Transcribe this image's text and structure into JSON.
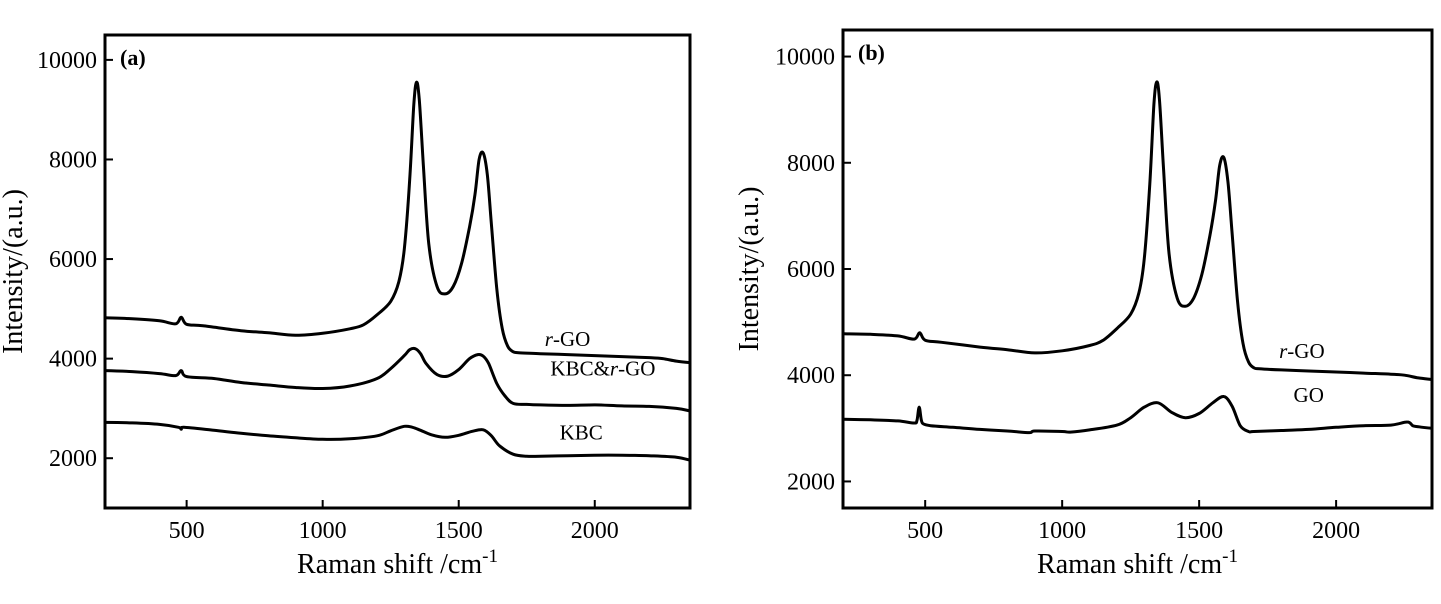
{
  "chart_data": [
    {
      "type": "line",
      "panel_label": "(a)",
      "xlabel_main": "Raman shift /cm",
      "xlabel_sup": "-1",
      "ylabel": "Intensity/(a.u.)",
      "xlim": [
        200,
        2350
      ],
      "ylim": [
        1000,
        10500
      ],
      "xticks": [
        500,
        1000,
        1500,
        2000
      ],
      "yticks": [
        2000,
        4000,
        6000,
        8000,
        10000
      ],
      "grid": false,
      "series": [
        {
          "name": "r-GO",
          "label_parts": [
            {
              "text": "r",
              "italic": true
            },
            {
              "text": "-GO",
              "italic": false
            }
          ],
          "label_at": [
            1900,
            4250
          ],
          "x": [
            200,
            300,
            400,
            460,
            480,
            500,
            560,
            700,
            800,
            900,
            1000,
            1100,
            1150,
            1200,
            1250,
            1280,
            1300,
            1320,
            1335,
            1345,
            1355,
            1370,
            1390,
            1420,
            1450,
            1480,
            1510,
            1540,
            1560,
            1575,
            1590,
            1605,
            1620,
            1640,
            1660,
            1680,
            1700,
            1720,
            1800,
            1900,
            2000,
            2100,
            2200,
            2250,
            2300,
            2350
          ],
          "values": [
            4820,
            4800,
            4760,
            4700,
            4830,
            4690,
            4660,
            4560,
            4520,
            4470,
            4510,
            4600,
            4680,
            4880,
            5150,
            5550,
            6200,
            7600,
            9100,
            9550,
            9200,
            7900,
            6300,
            5450,
            5300,
            5450,
            5900,
            6650,
            7300,
            8000,
            8130,
            7700,
            6700,
            5400,
            4600,
            4250,
            4140,
            4120,
            4100,
            4080,
            4060,
            4040,
            4020,
            4000,
            3950,
            3920
          ]
        },
        {
          "name": "KBC&r-GO",
          "label_parts": [
            {
              "text": "KBC&",
              "italic": false
            },
            {
              "text": "r",
              "italic": true
            },
            {
              "text": "-GO",
              "italic": false
            }
          ],
          "label_at": [
            2030,
            3660
          ],
          "x": [
            200,
            300,
            400,
            460,
            480,
            500,
            600,
            700,
            800,
            900,
            1000,
            1100,
            1200,
            1250,
            1300,
            1320,
            1340,
            1360,
            1380,
            1420,
            1460,
            1500,
            1540,
            1570,
            1590,
            1610,
            1640,
            1670,
            1700,
            1750,
            1800,
            1900,
            2000,
            2100,
            2200,
            2300,
            2350
          ],
          "values": [
            3760,
            3740,
            3700,
            3660,
            3760,
            3640,
            3600,
            3520,
            3470,
            3420,
            3400,
            3450,
            3600,
            3800,
            4060,
            4180,
            4200,
            4100,
            3900,
            3680,
            3650,
            3780,
            4000,
            4080,
            4050,
            3900,
            3500,
            3250,
            3100,
            3080,
            3070,
            3060,
            3070,
            3050,
            3040,
            3000,
            2950
          ]
        },
        {
          "name": "KBC",
          "label_parts": [
            {
              "text": "KBC",
              "italic": false
            }
          ],
          "label_at": [
            1950,
            2380
          ],
          "x": [
            200,
            300,
            400,
            470,
            480,
            490,
            600,
            700,
            800,
            900,
            1000,
            1100,
            1200,
            1250,
            1300,
            1330,
            1360,
            1400,
            1450,
            1500,
            1550,
            1590,
            1620,
            1650,
            1700,
            1750,
            1800,
            1900,
            2000,
            2100,
            2200,
            2300,
            2350
          ],
          "values": [
            2720,
            2710,
            2680,
            2620,
            2580,
            2620,
            2560,
            2500,
            2450,
            2410,
            2380,
            2390,
            2450,
            2550,
            2640,
            2620,
            2560,
            2470,
            2420,
            2460,
            2540,
            2570,
            2450,
            2250,
            2080,
            2040,
            2040,
            2050,
            2060,
            2060,
            2050,
            2020,
            1960
          ]
        }
      ]
    },
    {
      "type": "line",
      "panel_label": "(b)",
      "xlabel_main": "Raman shift /cm",
      "xlabel_sup": "-1",
      "ylabel": "Intensity/(a.u.)",
      "xlim": [
        200,
        2350
      ],
      "ylim": [
        1500,
        10500
      ],
      "xticks": [
        500,
        1000,
        1500,
        2000
      ],
      "yticks": [
        2000,
        4000,
        6000,
        8000,
        10000
      ],
      "grid": false,
      "series": [
        {
          "name": "r-GO",
          "label_parts": [
            {
              "text": "r",
              "italic": true
            },
            {
              "text": "-GO",
              "italic": false
            }
          ],
          "label_at": [
            1875,
            4320
          ],
          "x": [
            200,
            300,
            400,
            460,
            480,
            500,
            560,
            700,
            800,
            900,
            1000,
            1100,
            1150,
            1200,
            1250,
            1280,
            1300,
            1320,
            1335,
            1345,
            1355,
            1370,
            1390,
            1420,
            1450,
            1480,
            1510,
            1540,
            1560,
            1575,
            1590,
            1605,
            1620,
            1640,
            1660,
            1680,
            1700,
            1720,
            1800,
            1900,
            2000,
            2100,
            2200,
            2250,
            2300,
            2350
          ],
          "values": [
            4780,
            4770,
            4740,
            4680,
            4800,
            4660,
            4620,
            4530,
            4480,
            4420,
            4460,
            4560,
            4660,
            4880,
            5150,
            5550,
            6200,
            7600,
            9100,
            9520,
            9200,
            7900,
            6300,
            5450,
            5300,
            5450,
            5900,
            6650,
            7300,
            7950,
            8100,
            7650,
            6700,
            5400,
            4600,
            4250,
            4140,
            4120,
            4100,
            4080,
            4060,
            4040,
            4020,
            4000,
            3950,
            3920
          ]
        },
        {
          "name": "GO",
          "label_parts": [
            {
              "text": "GO",
              "italic": false
            }
          ],
          "label_at": [
            1900,
            3500
          ],
          "x": [
            200,
            300,
            400,
            460,
            470,
            478,
            486,
            495,
            520,
            600,
            700,
            800,
            880,
            900,
            1000,
            1030,
            1100,
            1200,
            1250,
            1300,
            1350,
            1400,
            1450,
            1500,
            1550,
            1590,
            1620,
            1650,
            1680,
            1700,
            1800,
            1900,
            2000,
            2100,
            2200,
            2260,
            2280,
            2300,
            2350
          ],
          "values": [
            3170,
            3160,
            3140,
            3100,
            3150,
            3400,
            3150,
            3080,
            3050,
            3020,
            2980,
            2950,
            2920,
            2950,
            2940,
            2930,
            2970,
            3060,
            3200,
            3400,
            3480,
            3300,
            3200,
            3280,
            3480,
            3600,
            3420,
            3050,
            2940,
            2940,
            2960,
            2980,
            3020,
            3050,
            3060,
            3120,
            3050,
            3030,
            3000
          ]
        }
      ]
    }
  ]
}
